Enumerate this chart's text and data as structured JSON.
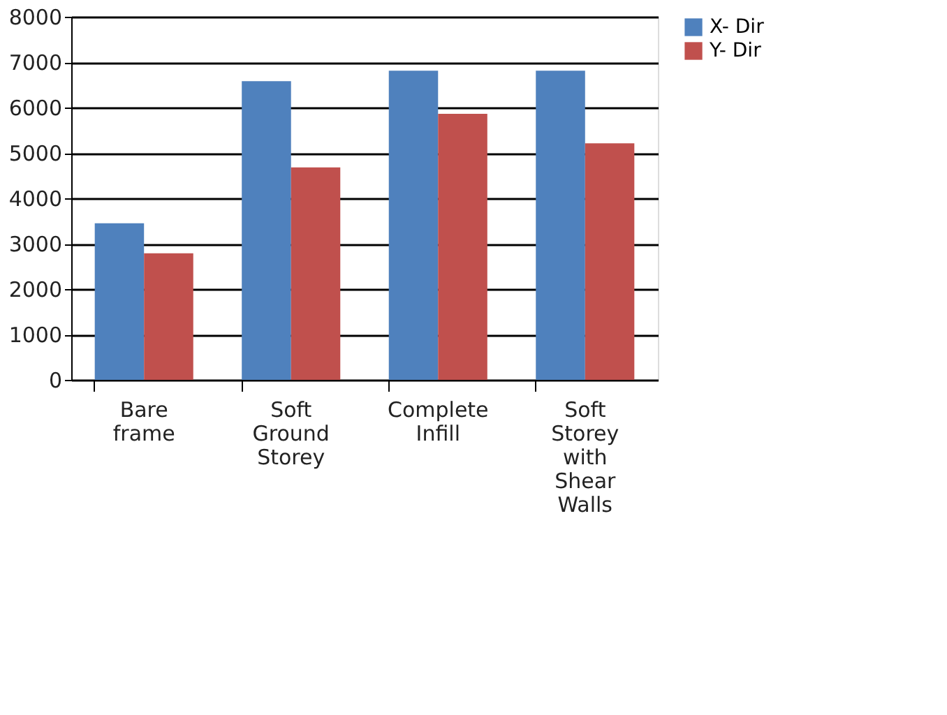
{
  "chart_data": {
    "type": "bar",
    "categories": [
      "Bare frame",
      "Soft Ground Storey",
      "Complete Infill",
      "Soft Storey with Shear Walls"
    ],
    "series": [
      {
        "name": "X- Dir",
        "color": "#4f81bd",
        "values": [
          3450,
          6580,
          6810,
          6810
        ]
      },
      {
        "name": "Y- Dir",
        "color": "#c0504d",
        "values": [
          2790,
          4680,
          5860,
          5210
        ]
      }
    ],
    "ylim": [
      0,
      8000
    ],
    "yticks": [
      0,
      1000,
      2000,
      3000,
      4000,
      5000,
      6000,
      7000,
      8000
    ],
    "grid": "y",
    "legend": "right"
  }
}
